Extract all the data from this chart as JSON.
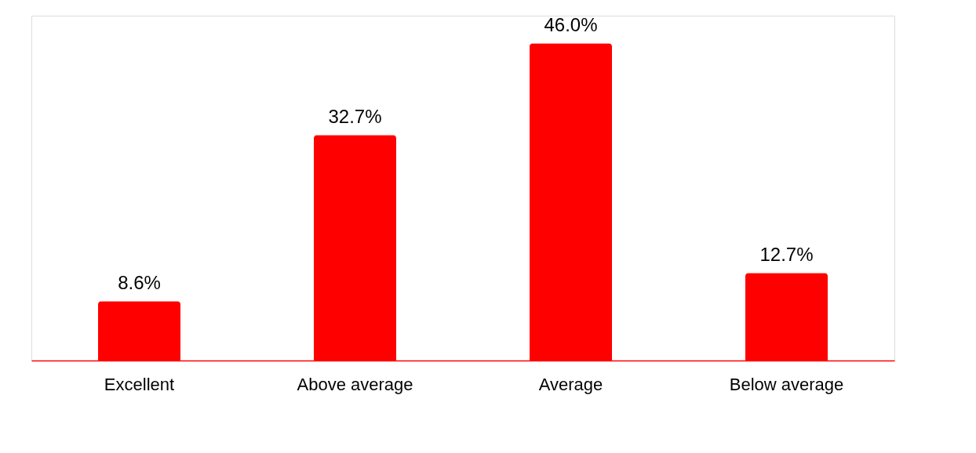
{
  "chart_data": {
    "type": "bar",
    "categories": [
      "Excellent",
      "Above average",
      "Average",
      "Below average"
    ],
    "values": [
      8.6,
      32.7,
      46.0,
      12.7
    ],
    "value_labels": [
      "8.6%",
      "32.7%",
      "46.0%",
      "12.7%"
    ],
    "color": "#ff0000",
    "ylim": [
      0,
      50
    ]
  }
}
